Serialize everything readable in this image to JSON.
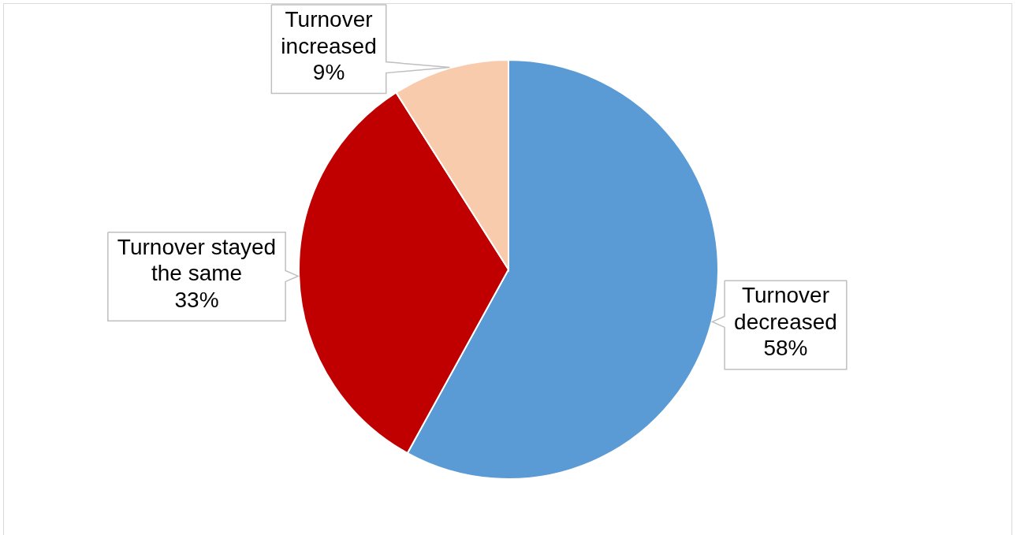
{
  "chart_data": {
    "type": "pie",
    "categories": [
      "Turnover decreased",
      "Turnover stayed the same",
      "Turnover increased"
    ],
    "values": [
      58,
      33,
      9
    ],
    "colors": [
      "#5b9bd5",
      "#c00000",
      "#f8cbad"
    ],
    "value_labels": [
      "58%",
      "33%",
      "9%"
    ]
  }
}
